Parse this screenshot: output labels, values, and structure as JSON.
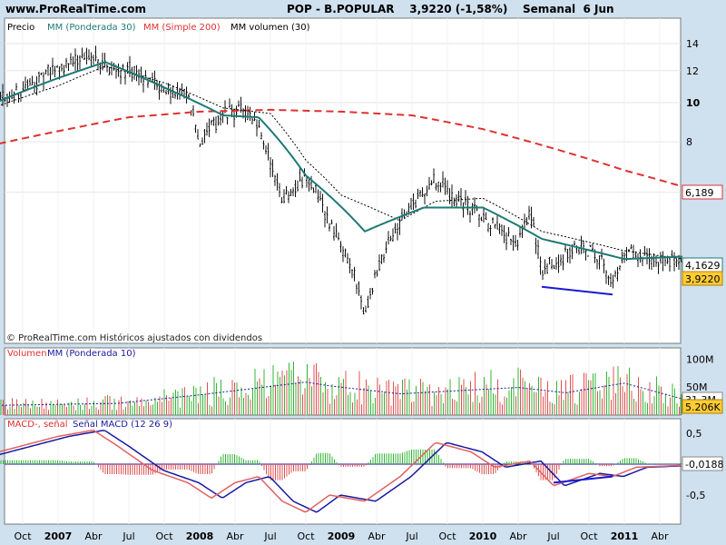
{
  "header": {
    "site": "www.ProRealTime.com",
    "title": "POP - B.POPULAR    3,9220 (-1,58%)    Semanal  6 Jun"
  },
  "colors": {
    "background": "#cfe0ee",
    "panel": "#ffffff",
    "price_bars": "#111111",
    "mm30": "#1d7a74",
    "mm200": "#e03030",
    "mmvol30": "#000000",
    "vol_up": "#35b535",
    "vol_down": "#e05050",
    "vol_ma": "#1a1aa0",
    "macd_line": "#e06060",
    "signal_line": "#1a1aa0",
    "divergence": "#1a1ad0",
    "last_price_label": "#ffcc33"
  },
  "chart_data": [
    {
      "type": "candlestick",
      "panel": "price",
      "legend": [
        "Precio",
        "MM (Ponderada 30)",
        "MM (Simple 200)",
        "MM volumen (30)"
      ],
      "y_ticks": [
        "14",
        "12",
        "10",
        "8",
        "6"
      ],
      "x_ticks": [
        "Oct",
        "2007",
        "Abr",
        "Jul",
        "Oct",
        "2008",
        "Abr",
        "Jul",
        "Oct",
        "2009",
        "Abr",
        "Jul",
        "Oct",
        "2010",
        "Abr",
        "Jul",
        "Oct",
        "2011",
        "Abr"
      ],
      "log_scale": true,
      "ylim": [
        2.8,
        16
      ],
      "price_anchors": [
        [
          "2006-07",
          9.6
        ],
        [
          "2006-10",
          10.8
        ],
        [
          "2007-01",
          12.2
        ],
        [
          "2007-04",
          13.2
        ],
        [
          "2007-05",
          12.4
        ],
        [
          "2007-07",
          12.0
        ],
        [
          "2007-10",
          10.8
        ],
        [
          "2007-12",
          10.4
        ],
        [
          "2008-01",
          8.0
        ],
        [
          "2008-03",
          9.4
        ],
        [
          "2008-05",
          9.5
        ],
        [
          "2008-06",
          8.4
        ],
        [
          "2008-08",
          5.8
        ],
        [
          "2008-10",
          6.6
        ],
        [
          "2008-11",
          6.0
        ],
        [
          "2008-12",
          5.0
        ],
        [
          "2009-02",
          3.8
        ],
        [
          "2009-03",
          3.0
        ],
        [
          "2009-05",
          4.5
        ],
        [
          "2009-07",
          5.6
        ],
        [
          "2009-09",
          6.4
        ],
        [
          "2009-11",
          5.7
        ],
        [
          "2010-02",
          4.9
        ],
        [
          "2010-04",
          4.4
        ],
        [
          "2010-05",
          5.4
        ],
        [
          "2010-06",
          3.8
        ],
        [
          "2010-09",
          4.4
        ],
        [
          "2010-11",
          4.2
        ],
        [
          "2010-12",
          3.5
        ],
        [
          "2011-01",
          4.2
        ],
        [
          "2011-04",
          4.1
        ],
        [
          "2011-06",
          3.92
        ]
      ],
      "mm_ponderada_30_anchors": [
        [
          "2006-07",
          9.8
        ],
        [
          "2007-01",
          11.5
        ],
        [
          "2007-05",
          12.6
        ],
        [
          "2007-10",
          10.9
        ],
        [
          "2008-03",
          9.3
        ],
        [
          "2008-06",
          9.2
        ],
        [
          "2008-10",
          6.6
        ],
        [
          "2009-03",
          4.8
        ],
        [
          "2009-08",
          5.5
        ],
        [
          "2010-01",
          5.5
        ],
        [
          "2010-06",
          4.6
        ],
        [
          "2011-01",
          4.1
        ],
        [
          "2011-06",
          4.16
        ]
      ],
      "mm_simple_200_anchors": [
        [
          "2006-07",
          7.8
        ],
        [
          "2007-01",
          8.5
        ],
        [
          "2007-07",
          9.2
        ],
        [
          "2008-01",
          9.5
        ],
        [
          "2008-07",
          9.6
        ],
        [
          "2009-01",
          9.5
        ],
        [
          "2009-07",
          9.3
        ],
        [
          "2010-01",
          8.6
        ],
        [
          "2010-07",
          7.7
        ],
        [
          "2011-01",
          6.8
        ],
        [
          "2011-06",
          6.19
        ]
      ],
      "mm_volumen_30_anchors": [
        [
          "2006-07",
          9.6
        ],
        [
          "2007-01",
          11.0
        ],
        [
          "2007-05",
          12.3
        ],
        [
          "2007-10",
          11.2
        ],
        [
          "2008-03",
          9.7
        ],
        [
          "2008-07",
          9.4
        ],
        [
          "2008-10",
          7.2
        ],
        [
          "2009-01",
          5.9
        ],
        [
          "2009-06",
          5.1
        ],
        [
          "2009-09",
          5.7
        ],
        [
          "2010-01",
          5.8
        ],
        [
          "2010-06",
          4.8
        ],
        [
          "2011-01",
          4.3
        ],
        [
          "2011-06",
          4.1
        ]
      ],
      "last_values": {
        "mm200": "6,189",
        "mm30": "4,1629",
        "price": "3,9220"
      },
      "divergence_line": {
        "from": [
          "2010-06",
          3.5
        ],
        "to": [
          "2010-12",
          3.35
        ]
      },
      "watermark": "© ProRealTime.com Históricos ajustados con dividendos"
    },
    {
      "type": "bar",
      "panel": "volume",
      "legend": [
        "Volumen",
        "MM (Ponderada 10)"
      ],
      "y_ticks": [
        "100M",
        "50M"
      ],
      "ylim": [
        0,
        120
      ],
      "volume_anchors": [
        [
          "2006-07",
          18
        ],
        [
          "2007-06",
          22
        ],
        [
          "2008-01",
          38
        ],
        [
          "2008-10",
          62
        ],
        [
          "2008-12",
          55
        ],
        [
          "2009-06",
          40
        ],
        [
          "2010-04",
          52
        ],
        [
          "2010-08",
          42
        ],
        [
          "2011-01",
          60
        ],
        [
          "2011-06",
          30
        ]
      ],
      "last_values": {
        "vol_ma": "31,3M",
        "volume": "5.206K"
      }
    },
    {
      "type": "histogram",
      "panel": "macd",
      "legend": [
        "MACD-, señal",
        "Señal MACD (12 26 9)"
      ],
      "y_ticks": [
        "0,5",
        "-0,5"
      ],
      "ylim": [
        -0.8,
        0.8
      ],
      "macd_anchors": [
        [
          "2006-07",
          0.15
        ],
        [
          "2006-10",
          0.3
        ],
        [
          "2007-01",
          0.45
        ],
        [
          "2007-04",
          0.55
        ],
        [
          "2007-06",
          0.3
        ],
        [
          "2007-09",
          -0.1
        ],
        [
          "2007-12",
          -0.3
        ],
        [
          "2008-02",
          -0.55
        ],
        [
          "2008-04",
          -0.3
        ],
        [
          "2008-06",
          -0.2
        ],
        [
          "2008-08",
          -0.6
        ],
        [
          "2008-10",
          -0.78
        ],
        [
          "2008-12",
          -0.5
        ],
        [
          "2009-03",
          -0.6
        ],
        [
          "2009-06",
          -0.2
        ],
        [
          "2009-09",
          0.35
        ],
        [
          "2009-12",
          0.2
        ],
        [
          "2010-02",
          -0.05
        ],
        [
          "2010-05",
          0.05
        ],
        [
          "2010-07",
          -0.35
        ],
        [
          "2010-10",
          -0.15
        ],
        [
          "2010-12",
          -0.2
        ],
        [
          "2011-02",
          -0.05
        ],
        [
          "2011-06",
          -0.02
        ]
      ],
      "divergence_line": {
        "from": [
          "2010-07",
          -0.3
        ],
        "to": [
          "2010-12",
          -0.2
        ]
      },
      "last_values": {
        "macd": "-0,0188"
      }
    }
  ]
}
